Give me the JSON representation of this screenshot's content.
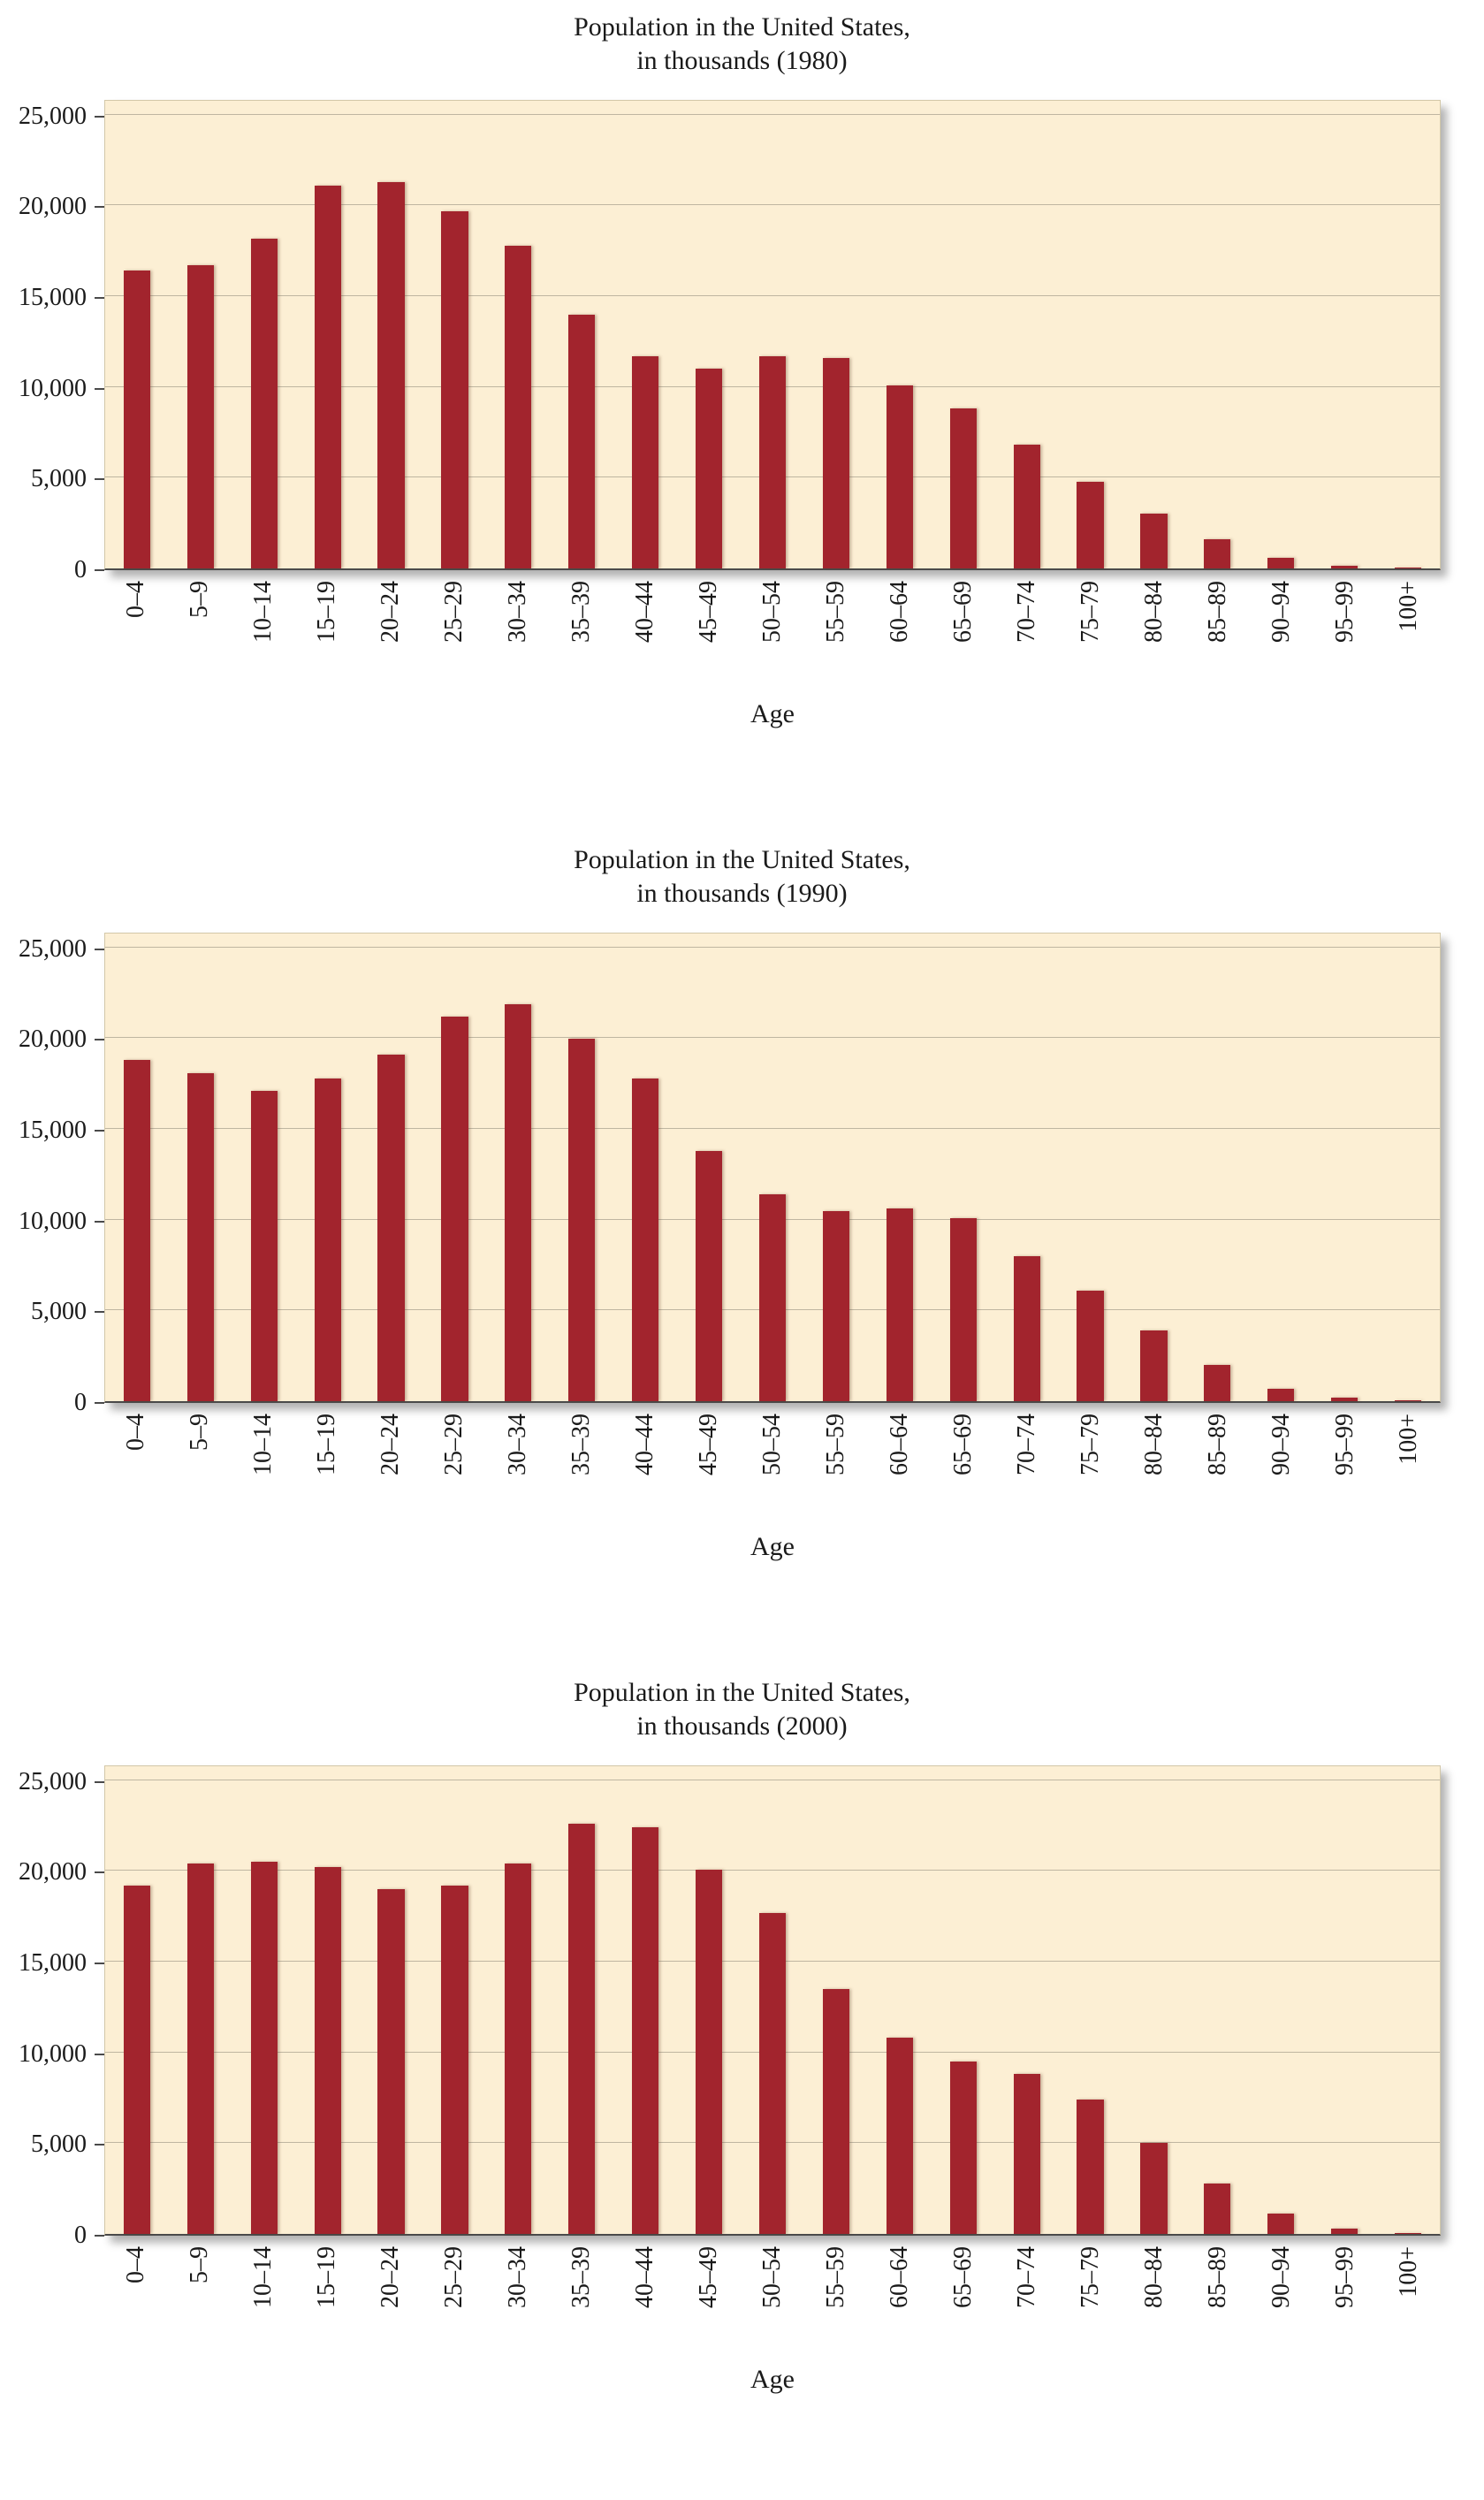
{
  "page": {
    "background": "#ffffff"
  },
  "chart_data": [
    {
      "type": "bar",
      "title": "Population in the United States, in thousands (1980)",
      "title_lines": [
        "Population in the United States,",
        "in thousands (1980)"
      ],
      "xlabel": "Age",
      "ylabel": "",
      "ylim": [
        0,
        25000
      ],
      "yticks": [
        0,
        5000,
        10000,
        15000,
        20000,
        25000
      ],
      "ytick_labels": [
        "0",
        "5,000",
        "10,000",
        "15,000",
        "20,000",
        "25,000"
      ],
      "grid": true,
      "legend": false,
      "bar_color": "#a2242d",
      "plot_bg": "#fcefd4",
      "grid_color": "#bfb6a1",
      "categories": [
        "0–4",
        "5–9",
        "10–14",
        "15–19",
        "20–24",
        "25–29",
        "30–34",
        "35–39",
        "40–44",
        "45–49",
        "50–54",
        "55–59",
        "60–64",
        "65–69",
        "70–74",
        "75–79",
        "80–84",
        "85–89",
        "90–94",
        "95–99",
        "100+"
      ],
      "values": [
        16400,
        16700,
        18200,
        21100,
        21300,
        19700,
        17800,
        14000,
        11700,
        11000,
        11700,
        11600,
        10100,
        8800,
        6800,
        4800,
        3000,
        1600,
        600,
        150,
        30
      ]
    },
    {
      "type": "bar",
      "title": "Population in the United States, in thousands (1990)",
      "title_lines": [
        "Population in the United States,",
        "in thousands (1990)"
      ],
      "xlabel": "Age",
      "ylabel": "",
      "ylim": [
        0,
        25000
      ],
      "yticks": [
        0,
        5000,
        10000,
        15000,
        20000,
        25000
      ],
      "ytick_labels": [
        "0",
        "5,000",
        "10,000",
        "15,000",
        "20,000",
        "25,000"
      ],
      "grid": true,
      "legend": false,
      "bar_color": "#a2242d",
      "plot_bg": "#fcefd4",
      "grid_color": "#bfb6a1",
      "categories": [
        "0–4",
        "5–9",
        "10–14",
        "15–19",
        "20–24",
        "25–29",
        "30–34",
        "35–39",
        "40–44",
        "45–49",
        "50–54",
        "55–59",
        "60–64",
        "65–69",
        "70–74",
        "75–79",
        "80–84",
        "85–89",
        "90–94",
        "95–99",
        "100+"
      ],
      "values": [
        18800,
        18100,
        17100,
        17800,
        19100,
        21200,
        21900,
        20000,
        17800,
        13800,
        11400,
        10500,
        10600,
        10100,
        8000,
        6100,
        3900,
        2000,
        700,
        200,
        40
      ]
    },
    {
      "type": "bar",
      "title": "Population in the United States, in thousands (2000)",
      "title_lines": [
        "Population in the United States,",
        "in thousands (2000)"
      ],
      "xlabel": "Age",
      "ylabel": "",
      "ylim": [
        0,
        25000
      ],
      "yticks": [
        0,
        5000,
        10000,
        15000,
        20000,
        25000
      ],
      "ytick_labels": [
        "0",
        "5,000",
        "10,000",
        "15,000",
        "20,000",
        "25,000"
      ],
      "grid": true,
      "legend": false,
      "bar_color": "#a2242d",
      "plot_bg": "#fcefd4",
      "grid_color": "#bfb6a1",
      "categories": [
        "0–4",
        "5–9",
        "10–14",
        "15–19",
        "20–24",
        "25–29",
        "30–34",
        "35–39",
        "40–44",
        "45–49",
        "50–54",
        "55–59",
        "60–64",
        "65–69",
        "70–74",
        "75–79",
        "80–84",
        "85–89",
        "90–94",
        "95–99",
        "100+"
      ],
      "values": [
        19200,
        20400,
        20500,
        20200,
        19000,
        19200,
        20400,
        22600,
        22400,
        20100,
        17700,
        13500,
        10800,
        9500,
        8800,
        7400,
        5000,
        2800,
        1100,
        300,
        50
      ]
    }
  ]
}
